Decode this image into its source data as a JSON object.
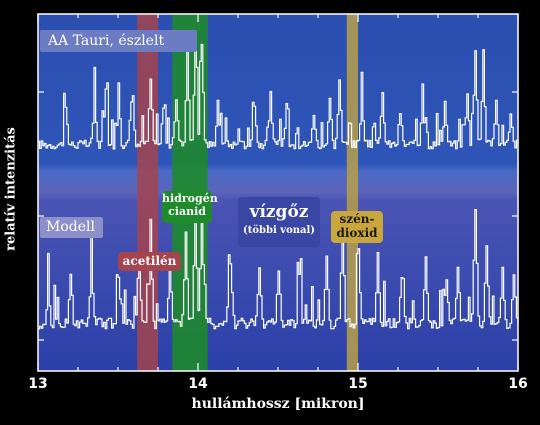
{
  "chart_data": {
    "type": "line",
    "title": "",
    "xlabel": "hullámhossz [mikron]",
    "ylabel": "relatív intenzitás",
    "xlim": [
      13,
      16
    ],
    "x_ticks": [
      "13",
      "14",
      "15",
      "16"
    ],
    "panels": [
      {
        "name": "AA Tauri, észlelt",
        "peaks": [
          {
            "x": 13.17,
            "y": 0.35
          },
          {
            "x": 13.35,
            "y": 0.42
          },
          {
            "x": 13.42,
            "y": 0.48
          },
          {
            "x": 13.5,
            "y": 0.4
          },
          {
            "x": 13.58,
            "y": 0.38
          },
          {
            "x": 13.7,
            "y": 0.6
          },
          {
            "x": 13.78,
            "y": 0.34
          },
          {
            "x": 13.86,
            "y": 0.42
          },
          {
            "x": 13.93,
            "y": 0.82
          },
          {
            "x": 13.98,
            "y": 0.98
          },
          {
            "x": 14.02,
            "y": 0.95
          },
          {
            "x": 14.12,
            "y": 0.4
          },
          {
            "x": 14.35,
            "y": 0.38
          },
          {
            "x": 14.45,
            "y": 0.45
          },
          {
            "x": 14.55,
            "y": 0.36
          },
          {
            "x": 14.72,
            "y": 0.3
          },
          {
            "x": 14.82,
            "y": 0.42
          },
          {
            "x": 14.88,
            "y": 0.6
          },
          {
            "x": 15.02,
            "y": 0.4
          },
          {
            "x": 15.15,
            "y": 0.46
          },
          {
            "x": 15.26,
            "y": 0.3
          },
          {
            "x": 15.4,
            "y": 0.44
          },
          {
            "x": 15.54,
            "y": 0.38
          },
          {
            "x": 15.68,
            "y": 0.44
          },
          {
            "x": 15.73,
            "y": 0.88
          },
          {
            "x": 15.78,
            "y": 0.75
          },
          {
            "x": 15.86,
            "y": 0.44
          },
          {
            "x": 15.95,
            "y": 0.3
          }
        ]
      },
      {
        "name": "Modell",
        "peaks": [
          {
            "x": 13.06,
            "y": 0.28
          },
          {
            "x": 13.2,
            "y": 0.4
          },
          {
            "x": 13.33,
            "y": 0.44
          },
          {
            "x": 13.5,
            "y": 0.38
          },
          {
            "x": 13.63,
            "y": 0.42
          },
          {
            "x": 13.7,
            "y": 0.62
          },
          {
            "x": 13.82,
            "y": 0.45
          },
          {
            "x": 13.92,
            "y": 0.72
          },
          {
            "x": 13.98,
            "y": 0.85
          },
          {
            "x": 14.02,
            "y": 0.82
          },
          {
            "x": 14.2,
            "y": 0.42
          },
          {
            "x": 14.38,
            "y": 0.46
          },
          {
            "x": 14.5,
            "y": 0.4
          },
          {
            "x": 14.63,
            "y": 0.35
          },
          {
            "x": 14.8,
            "y": 0.5
          },
          {
            "x": 14.9,
            "y": 0.78
          },
          {
            "x": 15.0,
            "y": 0.45
          },
          {
            "x": 15.12,
            "y": 0.52
          },
          {
            "x": 15.27,
            "y": 0.36
          },
          {
            "x": 15.42,
            "y": 0.48
          },
          {
            "x": 15.55,
            "y": 0.36
          },
          {
            "x": 15.62,
            "y": 0.44
          },
          {
            "x": 15.73,
            "y": 0.9
          },
          {
            "x": 15.8,
            "y": 0.58
          },
          {
            "x": 15.9,
            "y": 0.4
          },
          {
            "x": 15.97,
            "y": 0.35
          }
        ]
      }
    ],
    "bands": [
      {
        "label": "acetilén",
        "x_range": [
          13.62,
          13.75
        ],
        "color": "#a3444f"
      },
      {
        "label": "hidrogén cianid",
        "x_range": [
          13.84,
          14.06
        ],
        "color": "#1e8a2c"
      },
      {
        "label": "szén-dioxid",
        "x_range": [
          14.93,
          15.0
        ],
        "color": "#b8a04a"
      }
    ],
    "annotations": [
      {
        "title": "vízgőz",
        "subtitle": "(többi vonal)"
      }
    ]
  },
  "labels": {
    "acetylene": "acetilén",
    "hcn_line1": "hidrogén",
    "hcn_line2": "cianid",
    "co2_line1": "szén-",
    "co2_line2": "dioxid",
    "water_title": "vízgőz",
    "water_sub": "(többi vonal)"
  },
  "colors": {
    "panel_top": "#2e52b2",
    "panel_bottom": "#1f43a6",
    "top_band": "#4262c6",
    "mid_band": "#4a6ac6",
    "acetylene": "#a3444f",
    "hcn": "#1e8a2c",
    "co2": "#b8a04a",
    "trace": "#ffffff"
  }
}
